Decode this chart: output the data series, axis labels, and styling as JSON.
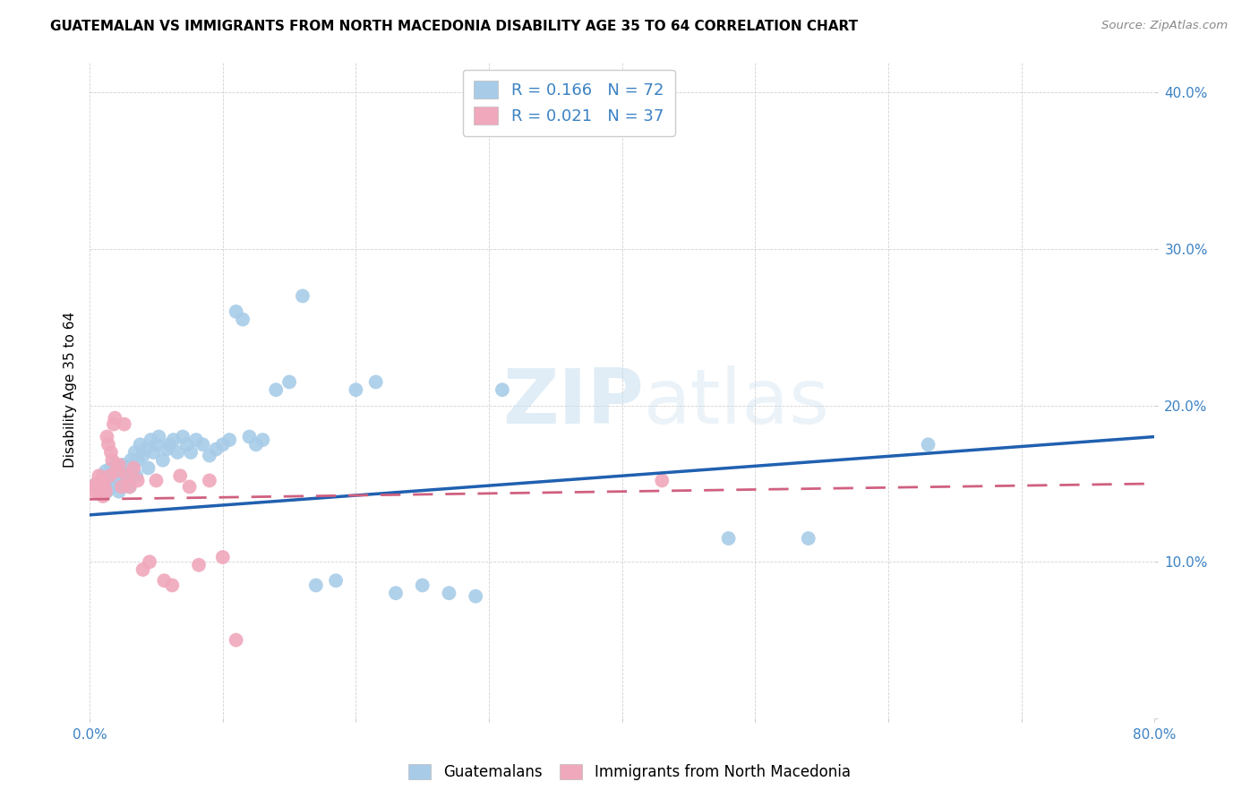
{
  "title": "GUATEMALAN VS IMMIGRANTS FROM NORTH MACEDONIA DISABILITY AGE 35 TO 64 CORRELATION CHART",
  "source": "Source: ZipAtlas.com",
  "ylabel": "Disability Age 35 to 64",
  "xlim": [
    0.0,
    0.8
  ],
  "ylim": [
    0.0,
    0.42
  ],
  "xticks": [
    0.0,
    0.1,
    0.2,
    0.3,
    0.4,
    0.5,
    0.6,
    0.7,
    0.8
  ],
  "yticks": [
    0.0,
    0.1,
    0.2,
    0.3,
    0.4
  ],
  "xtick_labels": [
    "0.0%",
    "",
    "",
    "",
    "",
    "",
    "",
    "",
    "80.0%"
  ],
  "ytick_labels": [
    "",
    "10.0%",
    "20.0%",
    "30.0%",
    "40.0%"
  ],
  "blue_R": 0.166,
  "blue_N": 72,
  "pink_R": 0.021,
  "pink_N": 37,
  "blue_color": "#A8CCE8",
  "pink_color": "#F0A8BC",
  "blue_line_color": "#2060B0",
  "pink_line_color": "#D06080",
  "legend_R_color": "#3B82C4",
  "blue_x": [
    0.005,
    0.007,
    0.009,
    0.01,
    0.011,
    0.012,
    0.013,
    0.014,
    0.015,
    0.016,
    0.017,
    0.018,
    0.019,
    0.02,
    0.021,
    0.022,
    0.023,
    0.024,
    0.025,
    0.026,
    0.027,
    0.028,
    0.029,
    0.03,
    0.031,
    0.032,
    0.033,
    0.034,
    0.035,
    0.036,
    0.038,
    0.04,
    0.042,
    0.044,
    0.046,
    0.048,
    0.05,
    0.052,
    0.055,
    0.058,
    0.06,
    0.063,
    0.066,
    0.07,
    0.073,
    0.076,
    0.08,
    0.085,
    0.09,
    0.095,
    0.1,
    0.105,
    0.11,
    0.115,
    0.12,
    0.125,
    0.13,
    0.14,
    0.15,
    0.16,
    0.17,
    0.185,
    0.2,
    0.215,
    0.23,
    0.25,
    0.27,
    0.29,
    0.31,
    0.48,
    0.54,
    0.63
  ],
  "blue_y": [
    0.15,
    0.148,
    0.152,
    0.155,
    0.148,
    0.158,
    0.145,
    0.155,
    0.15,
    0.16,
    0.155,
    0.148,
    0.162,
    0.15,
    0.158,
    0.145,
    0.155,
    0.16,
    0.162,
    0.15,
    0.158,
    0.152,
    0.155,
    0.148,
    0.165,
    0.162,
    0.158,
    0.17,
    0.155,
    0.165,
    0.175,
    0.168,
    0.172,
    0.16,
    0.178,
    0.17,
    0.175,
    0.18,
    0.165,
    0.172,
    0.175,
    0.178,
    0.17,
    0.18,
    0.175,
    0.17,
    0.178,
    0.175,
    0.168,
    0.172,
    0.175,
    0.178,
    0.26,
    0.255,
    0.18,
    0.175,
    0.178,
    0.21,
    0.215,
    0.27,
    0.085,
    0.088,
    0.21,
    0.215,
    0.08,
    0.085,
    0.08,
    0.078,
    0.21,
    0.115,
    0.115,
    0.175
  ],
  "pink_x": [
    0.003,
    0.004,
    0.005,
    0.006,
    0.007,
    0.008,
    0.009,
    0.01,
    0.011,
    0.012,
    0.013,
    0.014,
    0.015,
    0.016,
    0.017,
    0.018,
    0.019,
    0.02,
    0.022,
    0.024,
    0.026,
    0.028,
    0.03,
    0.033,
    0.036,
    0.04,
    0.045,
    0.05,
    0.056,
    0.062,
    0.068,
    0.075,
    0.082,
    0.09,
    0.1,
    0.11,
    0.43
  ],
  "pink_y": [
    0.145,
    0.148,
    0.15,
    0.145,
    0.155,
    0.148,
    0.152,
    0.142,
    0.148,
    0.145,
    0.18,
    0.175,
    0.155,
    0.17,
    0.165,
    0.188,
    0.192,
    0.158,
    0.162,
    0.148,
    0.188,
    0.155,
    0.148,
    0.16,
    0.152,
    0.095,
    0.1,
    0.152,
    0.088,
    0.085,
    0.155,
    0.148,
    0.098,
    0.152,
    0.103,
    0.05,
    0.152
  ]
}
